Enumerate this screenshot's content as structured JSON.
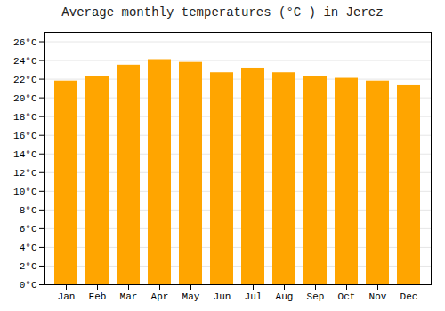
{
  "chart_data": {
    "type": "bar",
    "title": "Average monthly temperatures (°C ) in Jerez",
    "categories": [
      "Jan",
      "Feb",
      "Mar",
      "Apr",
      "May",
      "Jun",
      "Jul",
      "Aug",
      "Sep",
      "Oct",
      "Nov",
      "Dec"
    ],
    "values": [
      21.8,
      22.3,
      23.5,
      24.1,
      23.8,
      22.7,
      23.2,
      22.7,
      22.3,
      22.1,
      21.8,
      21.3
    ],
    "color": "#FFA500",
    "ylim": [
      0,
      27
    ],
    "yticks": [
      {
        "value": 0,
        "label": "0°C"
      },
      {
        "value": 2,
        "label": "2°C"
      },
      {
        "value": 4,
        "label": "4°C"
      },
      {
        "value": 6,
        "label": "6°C"
      },
      {
        "value": 8,
        "label": "8°C"
      },
      {
        "value": 10,
        "label": "10°C"
      },
      {
        "value": 12,
        "label": "12°C"
      },
      {
        "value": 14,
        "label": "14°C"
      },
      {
        "value": 16,
        "label": "16°C"
      },
      {
        "value": 18,
        "label": "18°C"
      },
      {
        "value": 20,
        "label": "20°C"
      },
      {
        "value": 22,
        "label": "22°C"
      },
      {
        "value": 24,
        "label": "24°C"
      },
      {
        "value": 26,
        "label": "26°C"
      }
    ],
    "grid": true
  }
}
